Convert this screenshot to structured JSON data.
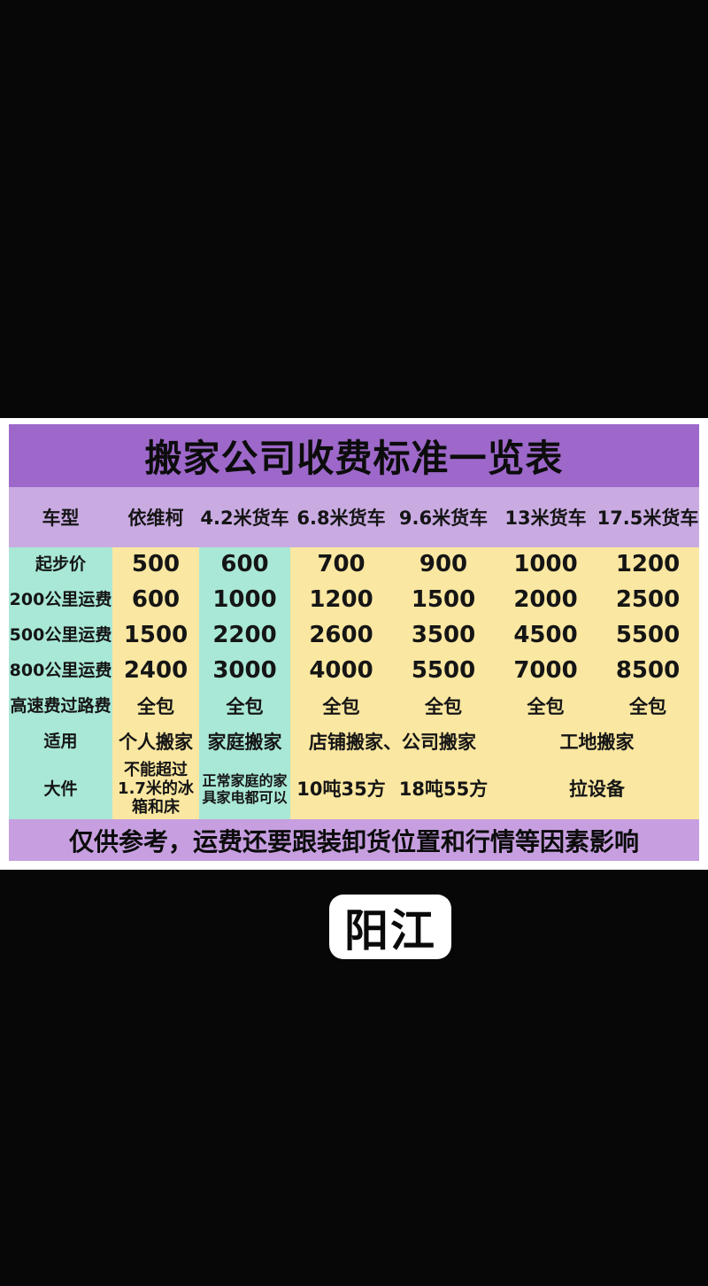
{
  "title": "搬家公司收费标准一览表",
  "columns": [
    "车型",
    "依维柯",
    "4.2米货车",
    "6.8米货车",
    "9.6米货车",
    "13米货车",
    "17.5米货车"
  ],
  "rows": [
    [
      "起步价",
      "500",
      "600",
      "700",
      "900",
      "1000",
      "1200"
    ],
    [
      "200公里运费",
      "600",
      "1000",
      "1200",
      "1500",
      "2000",
      "2500"
    ],
    [
      "500公里运费",
      "1500",
      "2200",
      "2600",
      "3500",
      "4500",
      "5500"
    ],
    [
      "800公里运费",
      "2400",
      "3000",
      "4000",
      "5500",
      "7000",
      "8500"
    ],
    [
      "高速费过路费",
      "全包",
      "全包",
      "全包",
      "全包",
      "全包",
      "全包"
    ],
    [
      "适用",
      "个人搬家",
      "家庭搬家",
      "店铺搬家、公司搬家",
      "工地搬家"
    ],
    [
      "大件",
      "不能超过1.7米的冰箱和床",
      "正常家庭的家具家电都可以",
      "10吨35方",
      "18吨55方",
      "拉设备"
    ]
  ],
  "footnote": "仅供参考，运费还要跟装卸货位置和行情等因素影响",
  "city_badge": "阳江",
  "colors": {
    "title-bar": "#9d68ca",
    "header-bar": "#c9abe2",
    "footnote-bar": "#c79fe0",
    "col-teal": "#a9e8d6",
    "col-yellow": "#fae7a1",
    "letterbox": "#070707",
    "text": "#151515",
    "badge-bg": "#ffffff"
  }
}
